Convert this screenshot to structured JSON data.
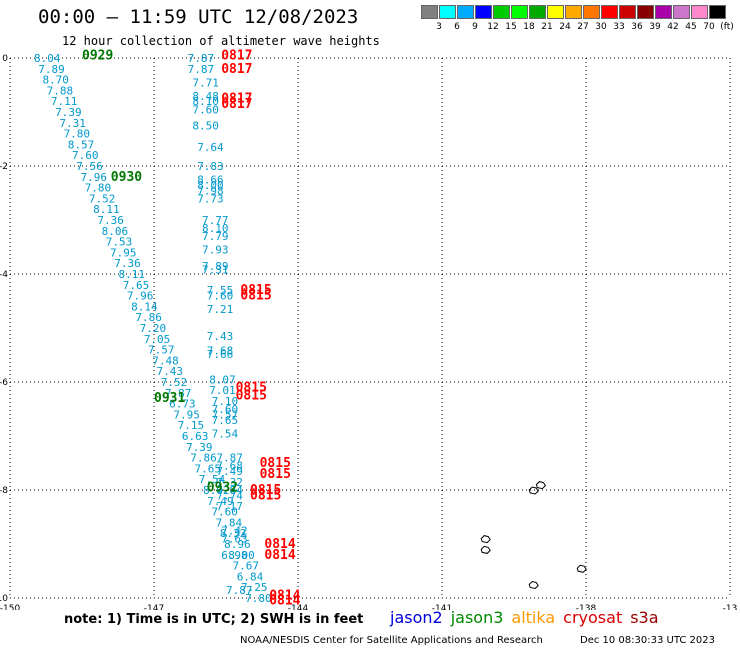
{
  "title": "00:00 – 11:59 UTC 12/08/2023",
  "subtitle": "12 hour collection of altimeter wave heights",
  "legend": {
    "colors": [
      "#808080",
      "#00ffff",
      "#00aaff",
      "#0000ff",
      "#00cc00",
      "#00ff00",
      "#00aa00",
      "#ffff00",
      "#ffaa00",
      "#ff7700",
      "#ff0000",
      "#cc0000",
      "#880000",
      "#aa00aa",
      "#cc77cc",
      "#ff88cc",
      "#000000"
    ],
    "labels": [
      "3",
      "6",
      "9",
      "12",
      "15",
      "18",
      "21",
      "24",
      "27",
      "30",
      "33",
      "36",
      "39",
      "42",
      "45",
      "70",
      "(ft)"
    ]
  },
  "axes": {
    "x_labels": [
      "-150",
      "-147",
      "-144",
      "-141",
      "-138",
      "-13"
    ],
    "y_labels": [
      "0",
      "-2",
      "-4",
      "-6",
      "-8",
      "-10"
    ]
  },
  "pass_labels": [
    {
      "text": "0929",
      "color": "#007700",
      "lon": -148.5,
      "lat": 0.05
    },
    {
      "text": "0930",
      "color": "#007700",
      "lon": -147.9,
      "lat": -2.2
    },
    {
      "text": "0931",
      "color": "#007700",
      "lon": -147.0,
      "lat": -6.3
    },
    {
      "text": "0932",
      "color": "#007700",
      "lon": -145.9,
      "lat": -7.95
    },
    {
      "text": "0817",
      "color": "#ff0000",
      "lon": -145.6,
      "lat": 0.05
    },
    {
      "text": "0817",
      "color": "#ff0000",
      "lon": -145.6,
      "lat": -0.2
    },
    {
      "text": "0817",
      "color": "#ff0000",
      "lon": -145.6,
      "lat": -0.75
    },
    {
      "text": "0817",
      "color": "#ff0000",
      "lon": -145.6,
      "lat": -0.85
    },
    {
      "text": "0815",
      "color": "#ff0000",
      "lon": -145.2,
      "lat": -4.3
    },
    {
      "text": "0815",
      "color": "#ff0000",
      "lon": -145.2,
      "lat": -4.4
    },
    {
      "text": "0815",
      "color": "#ff0000",
      "lon": -145.3,
      "lat": -6.1
    },
    {
      "text": "0815",
      "color": "#ff0000",
      "lon": -145.3,
      "lat": -6.25
    },
    {
      "text": "0815",
      "color": "#ff0000",
      "lon": -144.8,
      "lat": -7.5
    },
    {
      "text": "0815",
      "color": "#ff0000",
      "lon": -144.8,
      "lat": -7.7
    },
    {
      "text": "0815",
      "color": "#ff0000",
      "lon": -145.0,
      "lat": -8.0
    },
    {
      "text": "0815",
      "color": "#ff0000",
      "lon": -145.0,
      "lat": -8.1
    },
    {
      "text": "0814",
      "color": "#ff0000",
      "lon": -144.7,
      "lat": -9.0
    },
    {
      "text": "0814",
      "color": "#ff0000",
      "lon": -144.7,
      "lat": -9.2
    },
    {
      "text": "0814",
      "color": "#ff0000",
      "lon": -144.6,
      "lat": -9.95
    },
    {
      "text": "0814",
      "color": "#ff0000",
      "lon": -144.6,
      "lat": -10.05
    }
  ],
  "track_a": [
    "8.04",
    "7.89",
    "8.70",
    "7.88",
    "7.11",
    "7.39",
    "7.31",
    "7.80",
    "8.57",
    "7.60",
    "7.56",
    "7.96",
    "7.80",
    "7.52",
    "8.11",
    "7.36",
    "8.06",
    "7.53",
    "7.95",
    "7.36",
    "8.11",
    "7.65",
    "7.96",
    "8.14",
    "7.86",
    "7.20",
    "7.05",
    "7.57",
    "7.48",
    "7.43",
    "7.52",
    "7.87",
    "6.73",
    "7.95",
    "7.15",
    "6.63",
    "7.39",
    "7.86",
    "7.65",
    "7.54",
    "8.02",
    "7.49",
    "7.60",
    "7.84",
    "8.32",
    "8.96",
    "8.00",
    "7.67",
    "6.84",
    "7.25",
    "7.80"
  ],
  "track_b": [
    {
      "v": "7.87",
      "lon": -146.3,
      "lat": 0.0
    },
    {
      "v": "7.87",
      "lon": -146.3,
      "lat": -0.2
    },
    {
      "v": "7.71",
      "lon": -146.2,
      "lat": -0.45
    },
    {
      "v": "8.48",
      "lon": -146.2,
      "lat": -0.7
    },
    {
      "v": "8.10",
      "lon": -146.2,
      "lat": -0.8
    },
    {
      "v": "7.60",
      "lon": -146.2,
      "lat": -0.95
    },
    {
      "v": "8.50",
      "lon": -146.2,
      "lat": -1.25
    },
    {
      "v": "7.64",
      "lon": -146.1,
      "lat": -1.65
    },
    {
      "v": "7.83",
      "lon": -146.1,
      "lat": -2.0
    },
    {
      "v": "8.66",
      "lon": -146.1,
      "lat": -2.25
    },
    {
      "v": "8.00",
      "lon": -146.1,
      "lat": -2.35
    },
    {
      "v": "7.98",
      "lon": -146.1,
      "lat": -2.45
    },
    {
      "v": "7.73",
      "lon": -146.1,
      "lat": -2.6
    },
    {
      "v": "7.77",
      "lon": -146.0,
      "lat": -3.0
    },
    {
      "v": "8.10",
      "lon": -146.0,
      "lat": -3.15
    },
    {
      "v": "7.79",
      "lon": -146.0,
      "lat": -3.3
    },
    {
      "v": "7.93",
      "lon": -146.0,
      "lat": -3.55
    },
    {
      "v": "7.89",
      "lon": -146.0,
      "lat": -3.85
    },
    {
      "v": "7.31",
      "lon": -146.0,
      "lat": -3.92
    },
    {
      "v": "7.55",
      "lon": -145.9,
      "lat": -4.3
    },
    {
      "v": "7.60",
      "lon": -145.9,
      "lat": -4.4
    },
    {
      "v": "7.21",
      "lon": -145.9,
      "lat": -4.65
    },
    {
      "v": "7.43",
      "lon": -145.9,
      "lat": -5.15
    },
    {
      "v": "7.68",
      "lon": -145.9,
      "lat": -5.42
    },
    {
      "v": "7.66",
      "lon": -145.9,
      "lat": -5.48
    },
    {
      "v": "8.07",
      "lon": -145.85,
      "lat": -5.95
    },
    {
      "v": "7.01",
      "lon": -145.85,
      "lat": -6.15
    },
    {
      "v": "7.10",
      "lon": -145.8,
      "lat": -6.35
    },
    {
      "v": "7.60",
      "lon": -145.8,
      "lat": -6.5
    },
    {
      "v": "7.57",
      "lon": -145.8,
      "lat": -6.6
    },
    {
      "v": "7.65",
      "lon": -145.8,
      "lat": -6.7
    },
    {
      "v": "7.54",
      "lon": -145.8,
      "lat": -6.95
    },
    {
      "v": "7.87",
      "lon": -145.7,
      "lat": -7.4
    },
    {
      "v": "7.68",
      "lon": -145.7,
      "lat": -7.55
    },
    {
      "v": "7.49",
      "lon": -145.7,
      "lat": -7.65
    },
    {
      "v": "7.32",
      "lon": -145.7,
      "lat": -7.85
    },
    {
      "v": "7.84",
      "lon": -145.7,
      "lat": -8.0
    },
    {
      "v": "7.74",
      "lon": -145.7,
      "lat": -8.1
    },
    {
      "v": "7.17",
      "lon": -145.7,
      "lat": -8.3
    },
    {
      "v": "7.42",
      "lon": -145.6,
      "lat": -8.75
    },
    {
      "v": "7.63",
      "lon": -145.6,
      "lat": -8.9
    },
    {
      "v": "6.98",
      "lon": -145.6,
      "lat": -9.2
    },
    {
      "v": "7.87",
      "lon": -145.5,
      "lat": -9.85
    }
  ],
  "islands": [
    {
      "lon": -139.1,
      "lat": -8.0
    },
    {
      "lon": -138.95,
      "lat": -7.9
    },
    {
      "lon": -140.1,
      "lat": -8.9
    },
    {
      "lon": -139.1,
      "lat": -9.75
    },
    {
      "lon": -138.1,
      "lat": -9.45
    },
    {
      "lon": -140.1,
      "lat": -9.1
    }
  ],
  "footer": {
    "note": "note: 1) Time is in UTC; 2) SWH is in feet",
    "satellites": [
      {
        "name": "jason2",
        "color": "#0000dd"
      },
      {
        "name": "jason3",
        "color": "#008800"
      },
      {
        "name": "altika",
        "color": "#ff9900"
      },
      {
        "name": "cryosat",
        "color": "#dd0000"
      },
      {
        "name": "s3a",
        "color": "#990000"
      }
    ],
    "credit": "NOAA/NESDIS Center for Satellite Applications and Research",
    "stamp": "Dec 10 08:30:33 UTC 2023"
  }
}
